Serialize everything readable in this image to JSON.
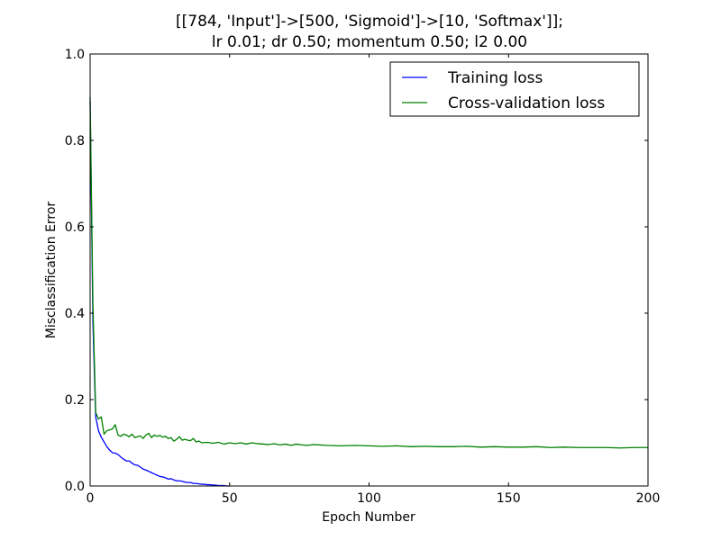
{
  "chart_data": {
    "type": "line",
    "title": [
      "[[784, 'Input']->[500, 'Sigmoid']->[10, 'Softmax']];",
      "lr 0.01; dr 0.50; momentum 0.50; l2 0.00"
    ],
    "xlabel": "Epoch Number",
    "ylabel": "Misclassification Error",
    "xlim": [
      0,
      200
    ],
    "ylim": [
      0.0,
      1.0
    ],
    "xticks": [
      0,
      50,
      100,
      150,
      200
    ],
    "xtick_labels": [
      "0",
      "50",
      "100",
      "150",
      "200"
    ],
    "yticks": [
      0.0,
      0.2,
      0.4,
      0.6,
      0.8,
      1.0
    ],
    "ytick_labels": [
      "0.0",
      "0.2",
      "0.4",
      "0.6",
      "0.8",
      "1.0"
    ],
    "grid": false,
    "legend_position": "top-right",
    "series": [
      {
        "name": "Training loss",
        "color": "#0000ff",
        "x": [
          0,
          1,
          2,
          3,
          4,
          5,
          6,
          7,
          8,
          9,
          10,
          11,
          12,
          13,
          14,
          15,
          16,
          17,
          18,
          19,
          20,
          21,
          22,
          23,
          24,
          25,
          26,
          27,
          28,
          29,
          30,
          31,
          32,
          33,
          34,
          35,
          36,
          37,
          38,
          39,
          40,
          41,
          42,
          43,
          44,
          45,
          46,
          47,
          48,
          49,
          50
        ],
        "y": [
          0.89,
          0.38,
          0.16,
          0.128,
          0.113,
          0.102,
          0.091,
          0.083,
          0.077,
          0.076,
          0.073,
          0.067,
          0.062,
          0.058,
          0.058,
          0.053,
          0.049,
          0.048,
          0.044,
          0.039,
          0.037,
          0.034,
          0.031,
          0.028,
          0.025,
          0.022,
          0.021,
          0.019,
          0.016,
          0.017,
          0.014,
          0.012,
          0.012,
          0.011,
          0.009,
          0.008,
          0.008,
          0.006,
          0.006,
          0.005,
          0.004,
          0.004,
          0.003,
          0.003,
          0.002,
          0.002,
          0.001,
          0.001,
          0.001,
          0.0,
          0.0
        ]
      },
      {
        "name": "Cross-validation loss",
        "color": "#008000",
        "x": [
          0,
          1,
          2,
          3,
          4,
          5,
          6,
          7,
          8,
          9,
          10,
          11,
          12,
          13,
          14,
          15,
          16,
          17,
          18,
          19,
          20,
          21,
          22,
          23,
          24,
          25,
          26,
          27,
          28,
          29,
          30,
          31,
          32,
          33,
          34,
          35,
          36,
          37,
          38,
          39,
          40,
          42,
          44,
          46,
          48,
          50,
          52,
          54,
          56,
          58,
          60,
          62,
          64,
          66,
          68,
          70,
          72,
          74,
          76,
          78,
          80,
          85,
          90,
          95,
          100,
          105,
          110,
          115,
          120,
          125,
          130,
          135,
          140,
          145,
          150,
          155,
          160,
          165,
          170,
          175,
          180,
          185,
          190,
          195,
          200
        ],
        "y": [
          0.9,
          0.42,
          0.17,
          0.155,
          0.16,
          0.12,
          0.128,
          0.13,
          0.132,
          0.142,
          0.118,
          0.115,
          0.12,
          0.118,
          0.114,
          0.12,
          0.112,
          0.114,
          0.116,
          0.11,
          0.118,
          0.122,
          0.112,
          0.118,
          0.115,
          0.117,
          0.113,
          0.115,
          0.11,
          0.112,
          0.104,
          0.108,
          0.114,
          0.106,
          0.108,
          0.106,
          0.105,
          0.11,
          0.102,
          0.104,
          0.1,
          0.101,
          0.099,
          0.101,
          0.097,
          0.1,
          0.098,
          0.1,
          0.097,
          0.1,
          0.098,
          0.097,
          0.096,
          0.098,
          0.095,
          0.097,
          0.094,
          0.097,
          0.095,
          0.094,
          0.096,
          0.094,
          0.093,
          0.094,
          0.093,
          0.092,
          0.093,
          0.091,
          0.092,
          0.091,
          0.091,
          0.092,
          0.09,
          0.091,
          0.09,
          0.09,
          0.091,
          0.089,
          0.09,
          0.089,
          0.089,
          0.089,
          0.088,
          0.089,
          0.089
        ]
      }
    ]
  }
}
